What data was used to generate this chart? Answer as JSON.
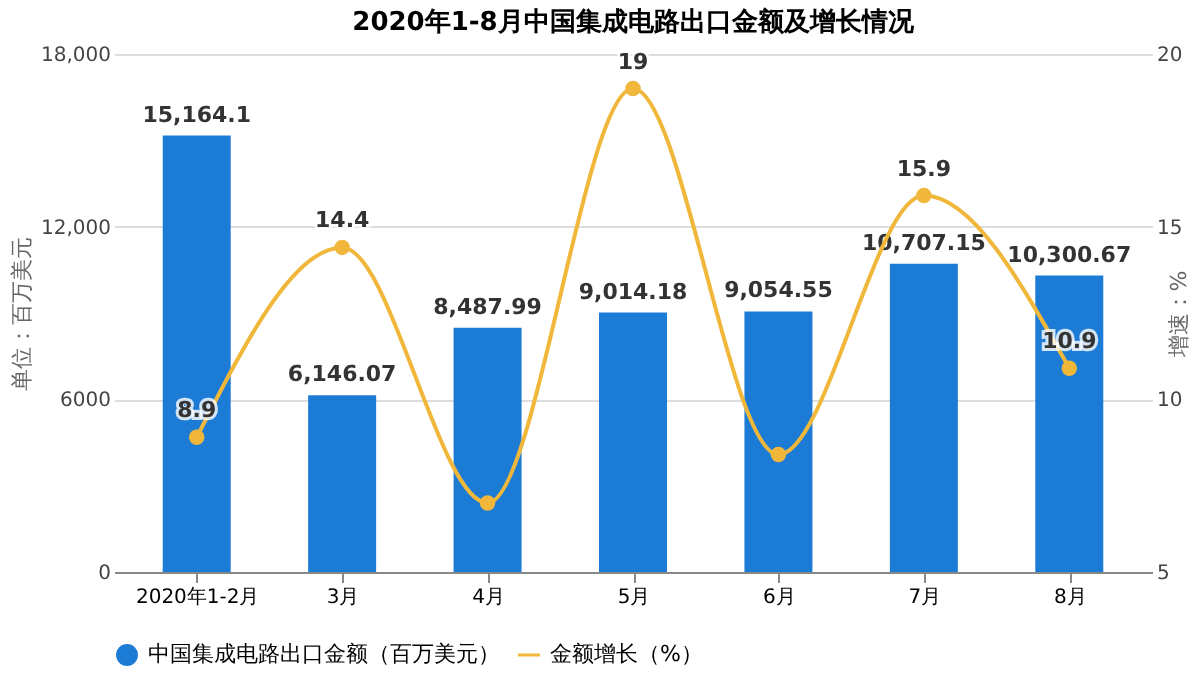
{
  "chart_data": {
    "type": "bar",
    "title": "2020年1-8月中国集成电路出口金额及增长情况",
    "categories": [
      "2020年1-2月",
      "3月",
      "4月",
      "5月",
      "6月",
      "7月",
      "8月"
    ],
    "ylabel": "单位：百万美元",
    "y2label": "增速：%",
    "ylim": [
      0,
      18000
    ],
    "yticks": [
      0,
      6000,
      {
        "value": 12000,
        "label": "12,000"
      },
      {
        "value": 18000,
        "label": "18,000"
      }
    ],
    "y2lim": [
      5,
      20
    ],
    "y2ticks": [
      5,
      10,
      15,
      20
    ],
    "grid": "y",
    "legend": "bottom",
    "data_labels": true,
    "series": [
      {
        "name": "中国集成电路出口金额（百万美元）",
        "color": "#1c7cd5",
        "values": [
          15164.1,
          6146.07,
          8487.99,
          9014.18,
          9054.55,
          10707.15,
          10300.67
        ],
        "value_labels": [
          "15,164.1",
          "6,146.07",
          "8,487.99",
          "9,014.18",
          "9,054.55",
          "10,707.15",
          "10,300.67"
        ]
      },
      {
        "name": "金额增长（%）",
        "type": "line",
        "axis": "y2",
        "color": "#f0b73a",
        "marker": "circle",
        "values": [
          8.9,
          14.4,
          7.0,
          19,
          8.4,
          15.9,
          10.9
        ],
        "value_labels": [
          "8.9",
          "14.4",
          null,
          "19",
          null,
          "15.9",
          "10.9"
        ]
      }
    ]
  }
}
